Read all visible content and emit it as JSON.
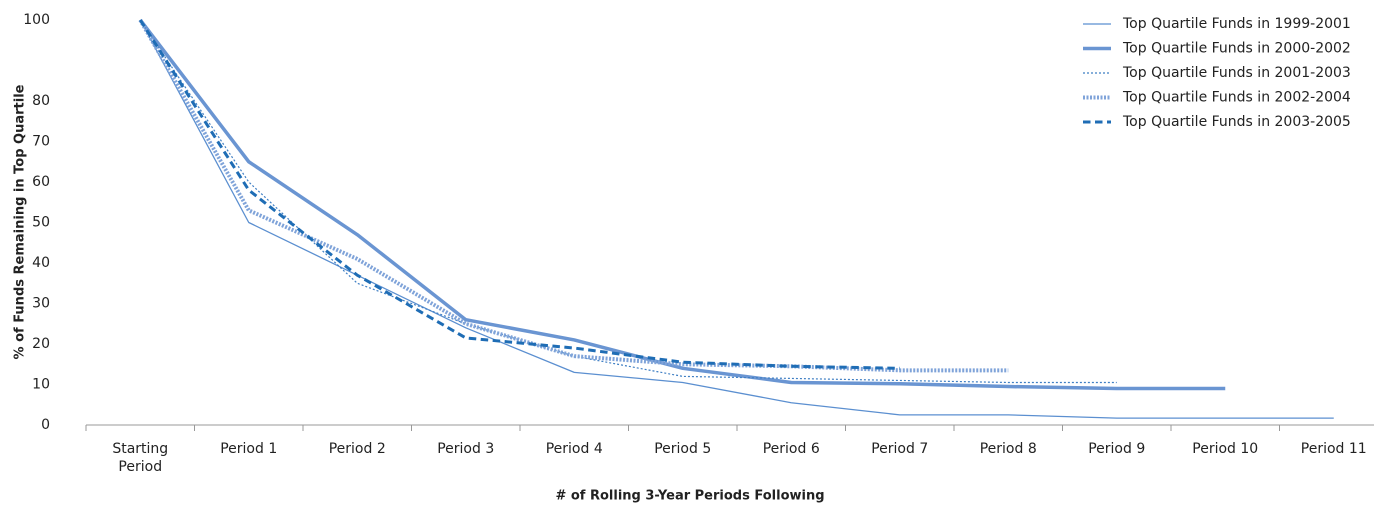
{
  "chart_data": {
    "type": "line",
    "x_label": "# of Rolling 3-Year Periods Following",
    "y_label": "% of Funds Remaining in Top Quartile",
    "categories": [
      "Starting Period",
      "Period 1",
      "Period 2",
      "Period 3",
      "Period 4",
      "Period 5",
      "Period 6",
      "Period 7",
      "Period 8",
      "Period 9",
      "Period 10",
      "Period 11"
    ],
    "ylim": [
      0,
      100
    ],
    "yticks": [
      0,
      10,
      20,
      30,
      40,
      50,
      60,
      70,
      80,
      100
    ],
    "grid": false,
    "legend": "top-right",
    "series": [
      {
        "name": "Top Quartile Funds in 1999-2001",
        "color": "#5b8fd0",
        "width": 1.3,
        "style": "solid",
        "values": [
          100,
          50,
          37,
          24,
          13,
          10.5,
          5.5,
          2.5,
          2.5,
          1.7,
          1.7,
          1.7
        ]
      },
      {
        "name": "Top Quartile Funds in 2000-2002",
        "color": "#6a95d2",
        "width": 3.5,
        "style": "solid",
        "values": [
          100,
          65,
          47,
          26,
          21,
          14,
          10.5,
          10.2,
          9.5,
          9,
          9,
          null
        ]
      },
      {
        "name": "Top Quartile Funds in 2001-2003",
        "color": "#3f7fc4",
        "width": 1.2,
        "style": "dotted",
        "values": [
          100,
          60,
          35,
          25,
          17,
          12,
          11.5,
          11,
          10.5,
          10.5,
          null,
          null
        ]
      },
      {
        "name": "Top Quartile Funds in 2002-2004",
        "color": "#7fa3d9",
        "width": 4,
        "style": "dotted",
        "values": [
          100,
          53,
          41,
          25,
          17,
          15,
          14.5,
          13.5,
          13.5,
          null,
          null,
          null
        ]
      },
      {
        "name": "Top Quartile Funds in 2003-2005",
        "color": "#1f6db5",
        "width": 3,
        "style": "dashed",
        "values": [
          100,
          58,
          37,
          21.5,
          19,
          15.5,
          14.5,
          14,
          null,
          null,
          null,
          null
        ]
      }
    ]
  }
}
